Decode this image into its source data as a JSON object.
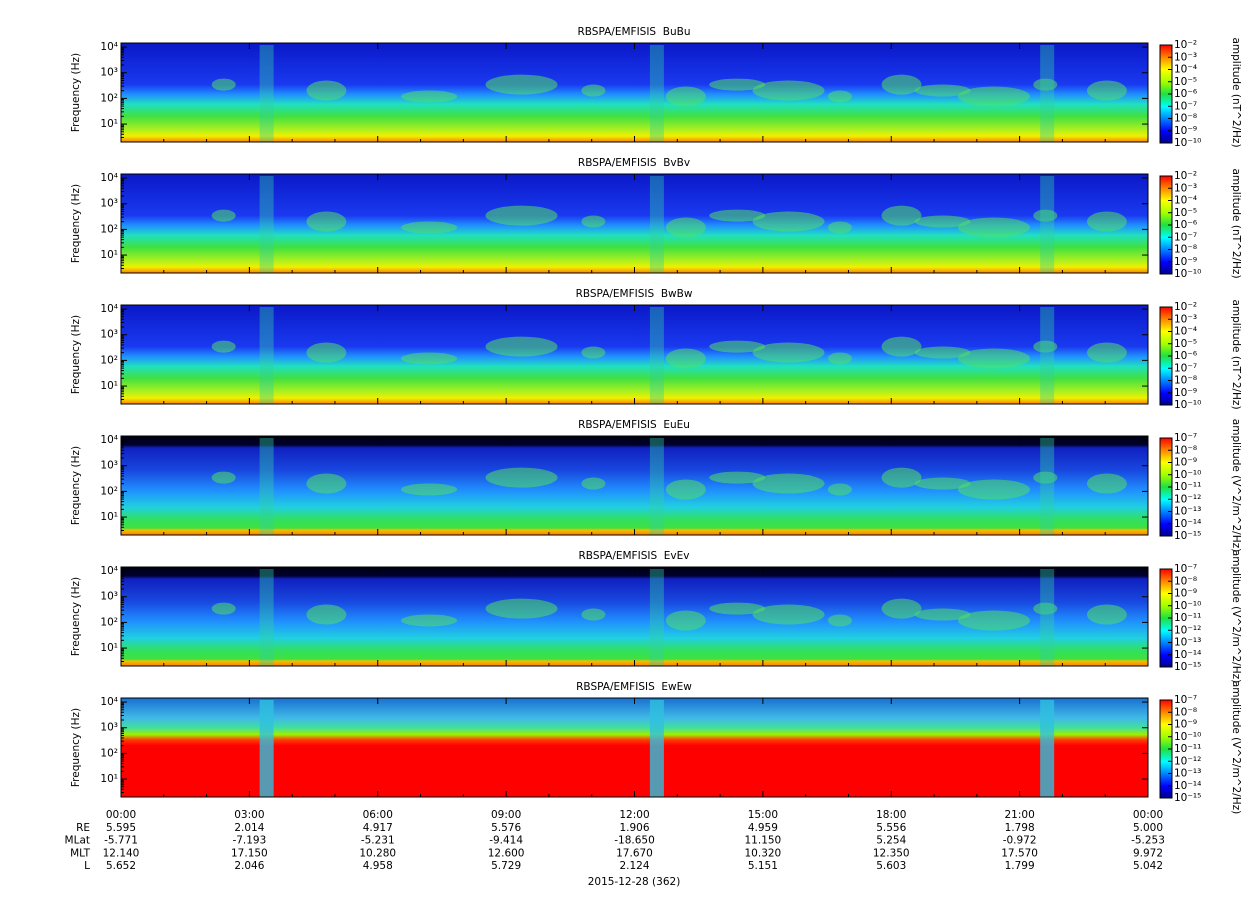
{
  "chart_data": [
    {
      "type": "spectrogram",
      "title": "RBSPA/EMFISIS  BuBu",
      "ylabel": "Frequency (Hz)",
      "yscale": "log",
      "ylim": [
        2,
        14400
      ],
      "yticks": [
        {
          "value": 10,
          "label": "10¹"
        },
        {
          "value": 100,
          "label": "10²"
        },
        {
          "value": 1000,
          "label": "10³"
        },
        {
          "value": 10000,
          "label": "10⁴"
        }
      ],
      "zscale": "log",
      "zlim": [
        1e-10,
        0.01
      ],
      "zlabel": "amplitude (nT^2/Hz)",
      "zticks": [
        {
          "value": 1e-10,
          "label": "10⁻¹⁰"
        },
        {
          "value": 1e-09,
          "label": "10⁻⁹"
        },
        {
          "value": 1e-08,
          "label": "10⁻⁸"
        },
        {
          "value": 1e-07,
          "label": "10⁻⁷"
        },
        {
          "value": 1e-06,
          "label": "10⁻⁶"
        },
        {
          "value": 1e-05,
          "label": "10⁻⁵"
        },
        {
          "value": 0.0001,
          "label": "10⁻⁴"
        },
        {
          "value": 0.001,
          "label": "10⁻³"
        },
        {
          "value": 0.01,
          "label": "10⁻²"
        }
      ]
    },
    {
      "type": "spectrogram",
      "title": "RBSPA/EMFISIS  BvBv",
      "ylabel": "Frequency (Hz)",
      "yscale": "log",
      "ylim": [
        2,
        14400
      ],
      "yticks": [
        {
          "value": 10,
          "label": "10¹"
        },
        {
          "value": 100,
          "label": "10²"
        },
        {
          "value": 1000,
          "label": "10³"
        },
        {
          "value": 10000,
          "label": "10⁴"
        }
      ],
      "zscale": "log",
      "zlim": [
        1e-10,
        0.01
      ],
      "zlabel": "amplitude (nT^2/Hz)",
      "zticks": [
        {
          "value": 1e-10,
          "label": "10⁻¹⁰"
        },
        {
          "value": 1e-09,
          "label": "10⁻⁹"
        },
        {
          "value": 1e-08,
          "label": "10⁻⁸"
        },
        {
          "value": 1e-07,
          "label": "10⁻⁷"
        },
        {
          "value": 1e-06,
          "label": "10⁻⁶"
        },
        {
          "value": 1e-05,
          "label": "10⁻⁵"
        },
        {
          "value": 0.0001,
          "label": "10⁻⁴"
        },
        {
          "value": 0.001,
          "label": "10⁻³"
        },
        {
          "value": 0.01,
          "label": "10⁻²"
        }
      ]
    },
    {
      "type": "spectrogram",
      "title": "RBSPA/EMFISIS  BwBw",
      "ylabel": "Frequency (Hz)",
      "yscale": "log",
      "ylim": [
        2,
        14400
      ],
      "yticks": [
        {
          "value": 10,
          "label": "10¹"
        },
        {
          "value": 100,
          "label": "10²"
        },
        {
          "value": 1000,
          "label": "10³"
        },
        {
          "value": 10000,
          "label": "10⁴"
        }
      ],
      "zscale": "log",
      "zlim": [
        1e-10,
        0.01
      ],
      "zlabel": "amplitude (nT^2/Hz)",
      "zticks": [
        {
          "value": 1e-10,
          "label": "10⁻¹⁰"
        },
        {
          "value": 1e-09,
          "label": "10⁻⁹"
        },
        {
          "value": 1e-08,
          "label": "10⁻⁸"
        },
        {
          "value": 1e-07,
          "label": "10⁻⁷"
        },
        {
          "value": 1e-06,
          "label": "10⁻⁶"
        },
        {
          "value": 1e-05,
          "label": "10⁻⁵"
        },
        {
          "value": 0.0001,
          "label": "10⁻⁴"
        },
        {
          "value": 0.001,
          "label": "10⁻³"
        },
        {
          "value": 0.01,
          "label": "10⁻²"
        }
      ]
    },
    {
      "type": "spectrogram",
      "title": "RBSPA/EMFISIS  EuEu",
      "ylabel": "Frequency (Hz)",
      "yscale": "log",
      "ylim": [
        2,
        14400
      ],
      "yticks": [
        {
          "value": 10,
          "label": "10¹"
        },
        {
          "value": 100,
          "label": "10²"
        },
        {
          "value": 1000,
          "label": "10³"
        },
        {
          "value": 10000,
          "label": "10⁴"
        }
      ],
      "zscale": "log",
      "zlim": [
        1e-15,
        1e-07
      ],
      "zlabel": "amplitude (V^2/m^2/Hz)",
      "zticks": [
        {
          "value": 1e-15,
          "label": "10⁻¹⁵"
        },
        {
          "value": 1e-14,
          "label": "10⁻¹⁴"
        },
        {
          "value": 1e-13,
          "label": "10⁻¹³"
        },
        {
          "value": 1e-12,
          "label": "10⁻¹²"
        },
        {
          "value": 1e-11,
          "label": "10⁻¹¹"
        },
        {
          "value": 1e-10,
          "label": "10⁻¹⁰"
        },
        {
          "value": 1e-09,
          "label": "10⁻⁹"
        },
        {
          "value": 1e-08,
          "label": "10⁻⁸"
        },
        {
          "value": 1e-07,
          "label": "10⁻⁷"
        }
      ]
    },
    {
      "type": "spectrogram",
      "title": "RBSPA/EMFISIS  EvEv",
      "ylabel": "Frequency (Hz)",
      "yscale": "log",
      "ylim": [
        2,
        14400
      ],
      "yticks": [
        {
          "value": 10,
          "label": "10¹"
        },
        {
          "value": 100,
          "label": "10²"
        },
        {
          "value": 1000,
          "label": "10³"
        },
        {
          "value": 10000,
          "label": "10⁴"
        }
      ],
      "zscale": "log",
      "zlim": [
        1e-15,
        1e-07
      ],
      "zlabel": "amplitude (V^2/m^2/Hz)",
      "zticks": [
        {
          "value": 1e-15,
          "label": "10⁻¹⁵"
        },
        {
          "value": 1e-14,
          "label": "10⁻¹⁴"
        },
        {
          "value": 1e-13,
          "label": "10⁻¹³"
        },
        {
          "value": 1e-12,
          "label": "10⁻¹²"
        },
        {
          "value": 1e-11,
          "label": "10⁻¹¹"
        },
        {
          "value": 1e-10,
          "label": "10⁻¹⁰"
        },
        {
          "value": 1e-09,
          "label": "10⁻⁹"
        },
        {
          "value": 1e-08,
          "label": "10⁻⁸"
        },
        {
          "value": 1e-07,
          "label": "10⁻⁷"
        }
      ]
    },
    {
      "type": "spectrogram",
      "title": "RBSPA/EMFISIS  EwEw",
      "ylabel": "Frequency (Hz)",
      "yscale": "log",
      "ylim": [
        2,
        14400
      ],
      "yticks": [
        {
          "value": 10,
          "label": "10¹"
        },
        {
          "value": 100,
          "label": "10²"
        },
        {
          "value": 1000,
          "label": "10³"
        },
        {
          "value": 10000,
          "label": "10⁴"
        }
      ],
      "zscale": "log",
      "zlim": [
        1e-15,
        1e-07
      ],
      "zlabel": "amplitude (V^2/m^2/Hz)",
      "zticks": [
        {
          "value": 1e-15,
          "label": "10⁻¹⁵"
        },
        {
          "value": 1e-14,
          "label": "10⁻¹⁴"
        },
        {
          "value": 1e-13,
          "label": "10⁻¹³"
        },
        {
          "value": 1e-12,
          "label": "10⁻¹²"
        },
        {
          "value": 1e-11,
          "label": "10⁻¹¹"
        },
        {
          "value": 1e-10,
          "label": "10⁻¹⁰"
        },
        {
          "value": 1e-09,
          "label": "10⁻⁹"
        },
        {
          "value": 1e-08,
          "label": "10⁻⁸"
        },
        {
          "value": 1e-07,
          "label": "10⁻⁷"
        }
      ]
    }
  ],
  "x_axis": {
    "ticks": [
      "00:00",
      "03:00",
      "06:00",
      "09:00",
      "12:00",
      "15:00",
      "18:00",
      "21:00",
      "00:00"
    ],
    "label": "2015-12-28 (362)"
  },
  "ephemeris": {
    "rows": [
      {
        "label": "RE",
        "values": [
          "5.595",
          "2.014",
          "4.917",
          "5.576",
          "1.906",
          "4.959",
          "5.556",
          "1.798",
          "5.000"
        ]
      },
      {
        "label": "MLat",
        "values": [
          "-5.771",
          "-7.193",
          "-5.231",
          "-9.414",
          "-18.650",
          "11.150",
          "5.254",
          "-0.972",
          "-5.253"
        ]
      },
      {
        "label": "MLT",
        "values": [
          "12.140",
          "17.150",
          "10.280",
          "12.600",
          "17.670",
          "10.320",
          "12.350",
          "17.570",
          "9.972"
        ]
      },
      {
        "label": "L",
        "values": [
          "5.652",
          "2.046",
          "4.958",
          "5.729",
          "2.124",
          "5.151",
          "5.603",
          "1.799",
          "5.042"
        ]
      }
    ]
  }
}
